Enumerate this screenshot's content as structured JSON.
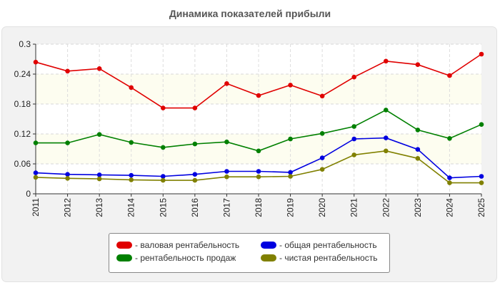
{
  "chart_data": {
    "type": "line",
    "title": "Динамика показателей прибыли",
    "categories": [
      "2011",
      "2012",
      "2013",
      "2014",
      "2015",
      "2016",
      "2017",
      "2018",
      "2019",
      "2020",
      "2021",
      "2022",
      "2023",
      "2024",
      "2025"
    ],
    "ylim": [
      0,
      0.3
    ],
    "yticks": [
      "0",
      "0.06",
      "0.12",
      "0.18",
      "0.24",
      "0.3"
    ],
    "grid": true,
    "legend_position": "bottom",
    "series": [
      {
        "name": "- валовая рентабельность",
        "color": "#e00000",
        "values": [
          0.264,
          0.246,
          0.251,
          0.213,
          0.172,
          0.172,
          0.221,
          0.197,
          0.218,
          0.196,
          0.234,
          0.266,
          0.259,
          0.237,
          0.28
        ]
      },
      {
        "name": "- общая рентабельность",
        "color": "#0000e0",
        "values": [
          0.042,
          0.039,
          0.038,
          0.037,
          0.035,
          0.039,
          0.045,
          0.045,
          0.043,
          0.072,
          0.11,
          0.112,
          0.089,
          0.032,
          0.035
        ]
      },
      {
        "name": "- рентабельность продаж",
        "color": "#008000",
        "values": [
          0.102,
          0.102,
          0.119,
          0.103,
          0.093,
          0.1,
          0.104,
          0.086,
          0.11,
          0.121,
          0.135,
          0.168,
          0.128,
          0.111,
          0.139
        ]
      },
      {
        "name": "- чистая рентабельность",
        "color": "#808000",
        "values": [
          0.033,
          0.031,
          0.03,
          0.028,
          0.027,
          0.027,
          0.034,
          0.034,
          0.035,
          0.049,
          0.078,
          0.086,
          0.071,
          0.022,
          0.022
        ]
      }
    ]
  }
}
